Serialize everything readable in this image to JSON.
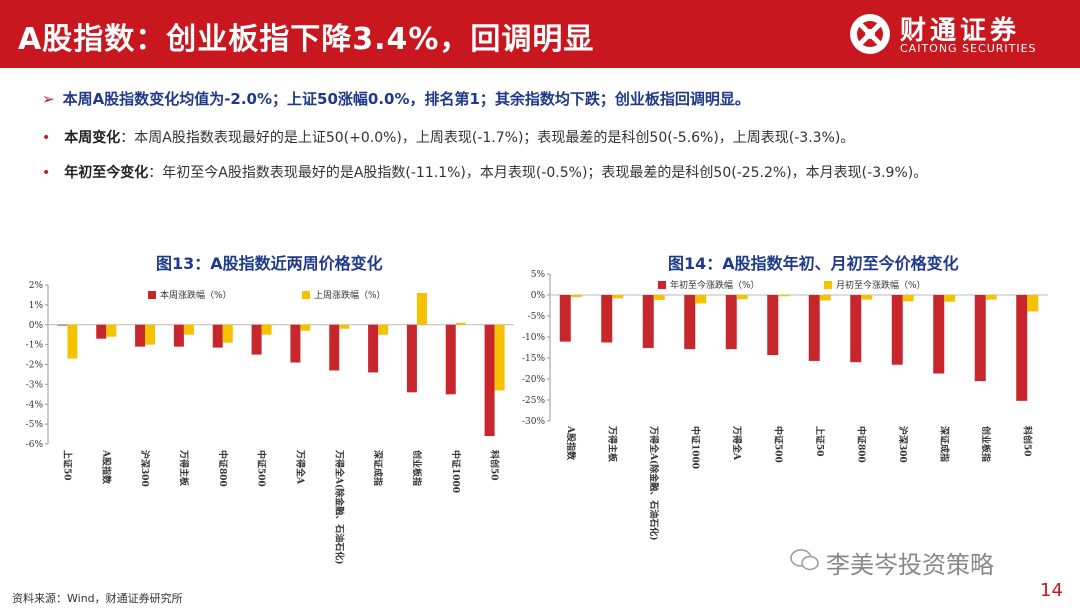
{
  "header": {
    "title": "A股指数：创业板指下降3.4%，回调明显",
    "logo_cn": "财通证券",
    "logo_en": "CAITONG SECURITIES"
  },
  "summary": {
    "arrow": "➢",
    "text": "本周A股指数变化均值为-2.0%；上证50涨幅0.0%，排名第1；其余指数均下跌；创业板指回调明显。"
  },
  "bullets": [
    {
      "dot": "•",
      "key": "本周变化",
      "text": "：本周A股指数表现最好的是上证50(+0.0%)，上周表现(-1.7%)；表现最差的是科创50(-5.6%)，上周表现(-3.3%)。"
    },
    {
      "dot": "•",
      "key": "年初至今变化",
      "text": "：年初至今A股指数表现最好的是A股指数(-11.1%)，本月表现(-0.5%)；表现最差的是科创50(-25.2%)，本月表现(-3.9%)。"
    }
  ],
  "chart_data": [
    {
      "type": "bar",
      "title": "图13：A股指数近两周价格变化",
      "categories": [
        "上证50",
        "A股指数",
        "沪深300",
        "万得主板",
        "中证800",
        "中证500",
        "万得全A",
        "万得全A(除金融、石油石化)",
        "深证成指",
        "创业板指",
        "中证1000",
        "科创50"
      ],
      "series": [
        {
          "name": "本周涨跌幅（%）",
          "color": "#c8262d",
          "values": [
            0.0,
            -0.7,
            -1.1,
            -1.1,
            -1.15,
            -1.5,
            -1.9,
            -2.3,
            -2.4,
            -3.4,
            -3.5,
            -5.6
          ]
        },
        {
          "name": "上周涨跌幅（%）",
          "color": "#f5c200",
          "values": [
            -1.7,
            -0.6,
            -1.0,
            -0.5,
            -0.9,
            -0.5,
            -0.3,
            -0.2,
            -0.5,
            1.6,
            0.1,
            -3.3
          ]
        }
      ],
      "ylim": [
        -6,
        2
      ],
      "yticks": [
        "2%",
        "1%",
        "0%",
        "-1%",
        "-2%",
        "-3%",
        "-4%",
        "-5%",
        "-6%"
      ],
      "legend": "top"
    },
    {
      "type": "bar",
      "title": "图14：A股指数年初、月初至今价格变化",
      "categories": [
        "A股指数",
        "万得主板",
        "万得全A(除金融、石油石化)",
        "中证1000",
        "万得全A",
        "中证500",
        "上证50",
        "中证800",
        "沪深300",
        "深证成指",
        "创业板指",
        "科创50"
      ],
      "series": [
        {
          "name": "年初至今涨跌幅（%）",
          "color": "#c8262d",
          "values": [
            -11.1,
            -11.3,
            -12.6,
            -12.9,
            -12.9,
            -14.3,
            -15.7,
            -16.0,
            -16.6,
            -18.7,
            -20.5,
            -25.2
          ]
        },
        {
          "name": "月初至今涨跌幅（%）",
          "color": "#f5c200",
          "values": [
            -0.5,
            -0.8,
            -1.2,
            -2.0,
            -1.0,
            -0.3,
            -1.3,
            -1.1,
            -1.5,
            -1.6,
            -1.1,
            -3.9
          ]
        }
      ],
      "ylim": [
        -30,
        5
      ],
      "yticks": [
        "5%",
        "0%",
        "-5%",
        "-10%",
        "-15%",
        "-20%",
        "-25%",
        "-30%"
      ],
      "legend": "top"
    }
  ],
  "footer": {
    "source": "资料来源：Wind，财通证券研究所",
    "watermark": "李美岑投资策略",
    "page": "14"
  }
}
